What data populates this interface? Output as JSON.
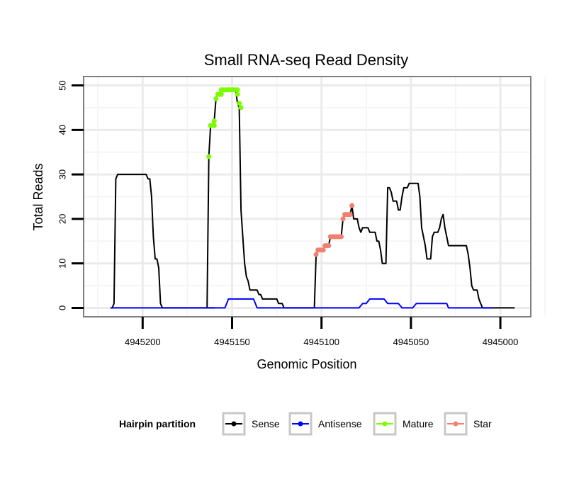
{
  "chart_data": {
    "type": "line",
    "title": "Small RNA-seq Read Density",
    "xlabel": "Genomic Position",
    "ylabel": "Total Reads",
    "x_reversed": true,
    "xlim": [
      4945233,
      4944983
    ],
    "ylim": [
      -2,
      52
    ],
    "x_ticks": [
      4945200,
      4945150,
      4945100,
      4945050,
      4945000
    ],
    "x_tick_labels": [
      "4945200",
      "4945150",
      "4945100",
      "4945050",
      "4945000"
    ],
    "y_ticks": [
      0,
      10,
      20,
      30,
      40,
      50
    ],
    "y_tick_labels": [
      "0",
      "10",
      "20",
      "30",
      "40",
      "50"
    ],
    "grid": true,
    "legend": {
      "title": "Hairpin partition",
      "position": "bottom",
      "entries": [
        {
          "label": "Sense",
          "color": "#000000"
        },
        {
          "label": "Antisense",
          "color": "#0000ff"
        },
        {
          "label": "Mature",
          "color": "#7cfc00"
        },
        {
          "label": "Star",
          "color": "#f08070"
        }
      ]
    },
    "series": [
      {
        "name": "Sense",
        "color": "#000000",
        "mode": "line",
        "points": [
          [
            4945218,
            0
          ],
          [
            4945217,
            0
          ],
          [
            4945216,
            1
          ],
          [
            4945215,
            29
          ],
          [
            4945214,
            30
          ],
          [
            4945212,
            30
          ],
          [
            4945208,
            30
          ],
          [
            4945204,
            30
          ],
          [
            4945200,
            30
          ],
          [
            4945198,
            30
          ],
          [
            4945197,
            29
          ],
          [
            4945196,
            29
          ],
          [
            4945195,
            25
          ],
          [
            4945194,
            16
          ],
          [
            4945193,
            11
          ],
          [
            4945192,
            11
          ],
          [
            4945191,
            9
          ],
          [
            4945190,
            1
          ],
          [
            4945189,
            0
          ],
          [
            4945180,
            0
          ],
          [
            4945170,
            0
          ],
          [
            4945160,
            0
          ],
          [
            4945165,
            0
          ],
          [
            4945164,
            0
          ],
          [
            4945163,
            34
          ],
          [
            4945162,
            41
          ],
          [
            4945161,
            41
          ],
          [
            4945160,
            42
          ],
          [
            4945159,
            47
          ],
          [
            4945158,
            48
          ],
          [
            4945157,
            48
          ],
          [
            4945156,
            49
          ],
          [
            4945155,
            49
          ],
          [
            4945150,
            49
          ],
          [
            4945149,
            49
          ],
          [
            4945148,
            49
          ],
          [
            4945147,
            46
          ],
          [
            4945146,
            45
          ],
          [
            4945145,
            22
          ],
          [
            4945144,
            16
          ],
          [
            4945143,
            10
          ],
          [
            4945142,
            7
          ],
          [
            4945141,
            6
          ],
          [
            4945140,
            4
          ],
          [
            4945136,
            4
          ],
          [
            4945135,
            3
          ],
          [
            4945134,
            3
          ],
          [
            4945133,
            2
          ],
          [
            4945125,
            2
          ],
          [
            4945124,
            1
          ],
          [
            4945122,
            1
          ],
          [
            4945121,
            0
          ],
          [
            4945105,
            0
          ],
          [
            4945104,
            0
          ],
          [
            4945103,
            12
          ],
          [
            4945102,
            13
          ],
          [
            4945099,
            13
          ],
          [
            4945098,
            14
          ],
          [
            4945096,
            14
          ],
          [
            4945095,
            16
          ],
          [
            4945089,
            16
          ],
          [
            4945088,
            20
          ],
          [
            4945087,
            21
          ],
          [
            4945084,
            21
          ],
          [
            4945083,
            23
          ],
          [
            4945082,
            20
          ],
          [
            4945080,
            20
          ],
          [
            4945079,
            18
          ],
          [
            4945078,
            17
          ],
          [
            4945077,
            18
          ],
          [
            4945074,
            18
          ],
          [
            4945073,
            17
          ],
          [
            4945070,
            17
          ],
          [
            4945069,
            15
          ],
          [
            4945068,
            15
          ],
          [
            4945067,
            13
          ],
          [
            4945066,
            10
          ],
          [
            4945064,
            10
          ],
          [
            4945063,
            27
          ],
          [
            4945062,
            27
          ],
          [
            4945061,
            26
          ],
          [
            4945060,
            24
          ],
          [
            4945058,
            24
          ],
          [
            4945057,
            22
          ],
          [
            4945056,
            22
          ],
          [
            4945055,
            25
          ],
          [
            4945054,
            27
          ],
          [
            4945052,
            27
          ],
          [
            4945051,
            28
          ],
          [
            4945046,
            28
          ],
          [
            4945045,
            25
          ],
          [
            4945044,
            18
          ],
          [
            4945043,
            16
          ],
          [
            4945042,
            14
          ],
          [
            4945041,
            11
          ],
          [
            4945039,
            11
          ],
          [
            4945038,
            16
          ],
          [
            4945037,
            17
          ],
          [
            4945035,
            17
          ],
          [
            4945034,
            18
          ],
          [
            4945033,
            20
          ],
          [
            4945032,
            21
          ],
          [
            4945031,
            18
          ],
          [
            4945030,
            16
          ],
          [
            4945029,
            14
          ],
          [
            4945028,
            14
          ],
          [
            4945019,
            14
          ],
          [
            4945018,
            12
          ],
          [
            4945017,
            9
          ],
          [
            4945016,
            5
          ],
          [
            4945015,
            4
          ],
          [
            4945013,
            4
          ],
          [
            4945012,
            2
          ],
          [
            4945011,
            1
          ],
          [
            4945010,
            0
          ],
          [
            4944992,
            0
          ]
        ]
      },
      {
        "name": "Antisense",
        "color": "#0000ff",
        "mode": "line",
        "points": [
          [
            4945218,
            0
          ],
          [
            4945165,
            0
          ],
          [
            4945155,
            0
          ],
          [
            4945154,
            0
          ],
          [
            4945152,
            2
          ],
          [
            4945145,
            2
          ],
          [
            4945139,
            2
          ],
          [
            4945138,
            2
          ],
          [
            4945136,
            0
          ],
          [
            4945090,
            0
          ],
          [
            4945080,
            0
          ],
          [
            4945079,
            0
          ],
          [
            4945077,
            1
          ],
          [
            4945075,
            1
          ],
          [
            4945073,
            2
          ],
          [
            4945066,
            2
          ],
          [
            4945065,
            2
          ],
          [
            4945063,
            1
          ],
          [
            4945058,
            1
          ],
          [
            4945057,
            1
          ],
          [
            4945055,
            0
          ],
          [
            4945049,
            0
          ],
          [
            4945047,
            1
          ],
          [
            4945037,
            1
          ],
          [
            4945036,
            1
          ],
          [
            4945034,
            1
          ],
          [
            4945033,
            1
          ],
          [
            4945031,
            1
          ],
          [
            4945030,
            1
          ],
          [
            4945029,
            0
          ],
          [
            4945010,
            0
          ],
          [
            4945004,
            0
          ]
        ]
      },
      {
        "name": "Mature",
        "color": "#7cfc00",
        "mode": "points",
        "points": [
          [
            4945163,
            34
          ],
          [
            4945162,
            41
          ],
          [
            4945161,
            41
          ],
          [
            4945160,
            41
          ],
          [
            4945160,
            42
          ],
          [
            4945159,
            47
          ],
          [
            4945158,
            48
          ],
          [
            4945157,
            48
          ],
          [
            4945156,
            48
          ],
          [
            4945156,
            49
          ],
          [
            4945155,
            49
          ],
          [
            4945154,
            49
          ],
          [
            4945153,
            49
          ],
          [
            4945152,
            49
          ],
          [
            4945151,
            49
          ],
          [
            4945150,
            49
          ],
          [
            4945149,
            49
          ],
          [
            4945148,
            49
          ],
          [
            4945147,
            49
          ],
          [
            4945147,
            48
          ],
          [
            4945146,
            46
          ],
          [
            4945145,
            45
          ]
        ]
      },
      {
        "name": "Star",
        "color": "#f08070",
        "mode": "points",
        "points": [
          [
            4945103,
            12
          ],
          [
            4945102,
            13
          ],
          [
            4945101,
            13
          ],
          [
            4945100,
            13
          ],
          [
            4945099,
            13
          ],
          [
            4945098,
            14
          ],
          [
            4945097,
            14
          ],
          [
            4945096,
            14
          ],
          [
            4945095,
            16
          ],
          [
            4945094,
            16
          ],
          [
            4945093,
            16
          ],
          [
            4945092,
            16
          ],
          [
            4945091,
            16
          ],
          [
            4945090,
            16
          ],
          [
            4945089,
            16
          ],
          [
            4945088,
            20
          ],
          [
            4945087,
            21
          ],
          [
            4945086,
            21
          ],
          [
            4945085,
            21
          ],
          [
            4945084,
            21
          ],
          [
            4945083,
            23
          ]
        ]
      }
    ]
  }
}
